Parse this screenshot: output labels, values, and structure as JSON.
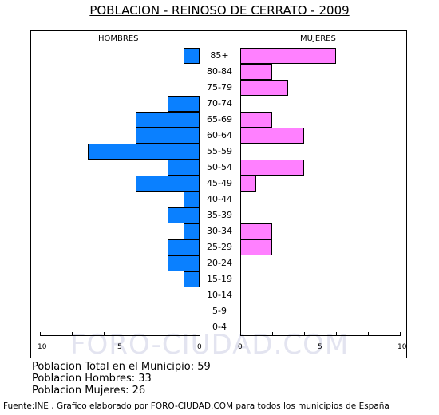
{
  "title": "POBLACION - REINOSO DE CERRATO - 2009",
  "watermark": "FORO-CIUDAD.COM",
  "stats": {
    "total": "Poblacion Total en el Municipio: 59",
    "hombres": "Poblacion Hombres: 33",
    "mujeres": "Poblacion Mujeres: 26"
  },
  "footer": "Fuente:INE , Grafico elaborado por FORO-CIUDAD.COM para todos los municipios de España",
  "colors": {
    "hombres": "#0a80ff",
    "mujeres": "#ff80ff"
  },
  "chart_data": {
    "type": "bar",
    "orientation": "horizontal",
    "subtype": "population-pyramid",
    "categories": [
      "85+",
      "80-84",
      "75-79",
      "70-74",
      "65-69",
      "60-64",
      "55-59",
      "50-54",
      "45-49",
      "40-44",
      "35-39",
      "30-34",
      "25-29",
      "20-24",
      "15-19",
      "10-14",
      "5-9",
      "0-4"
    ],
    "series": [
      {
        "name": "HOMBRES",
        "values": [
          1,
          0,
          0,
          2,
          4,
          4,
          7,
          2,
          4,
          1,
          2,
          1,
          2,
          2,
          1,
          0,
          0,
          0
        ]
      },
      {
        "name": "MUJERES",
        "values": [
          6,
          2,
          3,
          0,
          2,
          4,
          0,
          4,
          1,
          0,
          0,
          2,
          2,
          0,
          0,
          0,
          0,
          0
        ]
      }
    ],
    "xlim": [
      0,
      10
    ],
    "xticks_left": [
      "10",
      "5",
      "0"
    ],
    "xticks_right": [
      "0",
      "5",
      "10"
    ]
  }
}
